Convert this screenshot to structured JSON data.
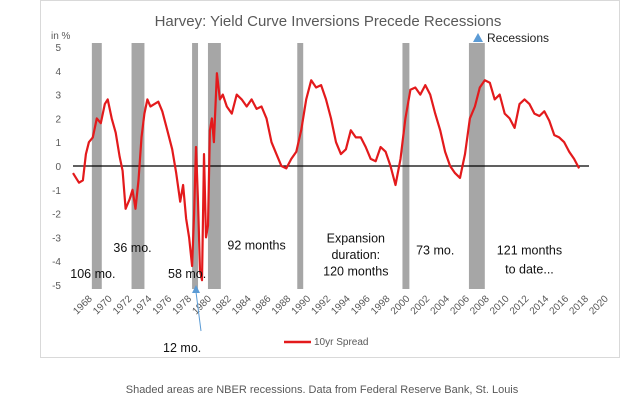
{
  "chart_data": {
    "type": "line",
    "title": "Harvey: Yield Curve Inversions Precede Recessions",
    "ylabel": "in %",
    "xlabel": "",
    "ylim": [
      -5,
      5
    ],
    "xlim": [
      1968,
      2020
    ],
    "yticks": [
      "5",
      "4",
      "3",
      "2",
      "1",
      "0",
      "-1",
      "-2",
      "-3",
      "-4",
      "-5"
    ],
    "xticks": [
      "1968",
      "1970",
      "1972",
      "1974",
      "1976",
      "1978",
      "1980",
      "1982",
      "1984",
      "1986",
      "1988",
      "1990",
      "1992",
      "1994",
      "1996",
      "1998",
      "2000",
      "2002",
      "2004",
      "2006",
      "2008",
      "2010",
      "2012",
      "2014",
      "2016",
      "2018",
      "2020"
    ],
    "legend": "10yr Spread",
    "series": [
      {
        "name": "10yr Spread",
        "color": "#e31a1c",
        "x": [
          1968.0,
          1968.3,
          1968.6,
          1969.0,
          1969.3,
          1969.6,
          1970.0,
          1970.4,
          1970.8,
          1971.2,
          1971.5,
          1971.9,
          1972.3,
          1972.7,
          1973.0,
          1973.3,
          1973.7,
          1974.0,
          1974.3,
          1974.6,
          1974.9,
          1975.2,
          1975.5,
          1975.8,
          1976.2,
          1976.6,
          1977.0,
          1977.5,
          1978.0,
          1978.4,
          1978.8,
          1979.1,
          1979.4,
          1979.7,
          1980.0,
          1980.2,
          1980.4,
          1980.6,
          1980.8,
          1981.0,
          1981.2,
          1981.4,
          1981.6,
          1981.8,
          1982.0,
          1982.2,
          1982.5,
          1982.8,
          1983.1,
          1983.5,
          1984.0,
          1984.5,
          1985.0,
          1985.5,
          1986.0,
          1986.5,
          1987.0,
          1987.5,
          1988.0,
          1988.5,
          1989.0,
          1989.5,
          1990.0,
          1990.5,
          1991.0,
          1991.5,
          1992.0,
          1992.5,
          1993.0,
          1993.5,
          1994.0,
          1994.5,
          1995.0,
          1995.5,
          1996.0,
          1996.5,
          1997.0,
          1997.5,
          1998.0,
          1998.5,
          1999.0,
          1999.5,
          2000.0,
          2000.5,
          2001.0,
          2001.5,
          2002.0,
          2002.5,
          2003.0,
          2003.5,
          2004.0,
          2004.5,
          2005.0,
          2005.5,
          2006.0,
          2006.5,
          2007.0,
          2007.5,
          2008.0,
          2008.5,
          2009.0,
          2009.5,
          2010.0,
          2010.5,
          2011.0,
          2011.5,
          2012.0,
          2012.5,
          2013.0,
          2013.5,
          2014.0,
          2014.5,
          2015.0,
          2015.5,
          2016.0,
          2016.5,
          2017.0,
          2017.5,
          2018.0,
          2018.5,
          2019.0
        ],
        "values": [
          -0.3,
          -0.5,
          -0.7,
          -0.6,
          0.5,
          1.0,
          1.2,
          2.0,
          1.8,
          2.6,
          2.8,
          2.0,
          1.4,
          0.4,
          -0.2,
          -1.8,
          -1.4,
          -1.0,
          -1.8,
          -0.6,
          1.2,
          2.2,
          2.8,
          2.5,
          2.6,
          2.7,
          2.3,
          1.5,
          0.7,
          -0.3,
          -1.5,
          -0.8,
          -2.2,
          -3.0,
          -4.2,
          -2.0,
          0.8,
          -1.5,
          -4.4,
          -4.8,
          0.5,
          -3.0,
          -2.5,
          1.5,
          2.0,
          1.0,
          3.9,
          2.8,
          3.0,
          2.5,
          2.2,
          3.0,
          2.8,
          2.5,
          2.8,
          2.4,
          2.5,
          2.0,
          1.0,
          0.5,
          0.0,
          -0.1,
          0.3,
          0.6,
          1.5,
          2.8,
          3.6,
          3.3,
          3.4,
          2.8,
          2.0,
          1.0,
          0.5,
          0.7,
          1.5,
          1.2,
          1.2,
          0.8,
          0.3,
          0.2,
          0.8,
          0.6,
          0.0,
          -0.8,
          0.3,
          2.0,
          3.2,
          3.3,
          3.0,
          3.4,
          3.0,
          2.2,
          1.5,
          0.6,
          0.0,
          -0.3,
          -0.5,
          0.5,
          2.0,
          2.5,
          3.3,
          3.6,
          3.5,
          2.8,
          3.0,
          2.2,
          2.0,
          1.6,
          2.6,
          2.8,
          2.6,
          2.2,
          2.1,
          2.3,
          1.9,
          1.3,
          1.2,
          1.0,
          0.6,
          0.3,
          -0.1
        ]
      }
    ],
    "recessions": [
      [
        1969.9,
        1970.9
      ],
      [
        1973.9,
        1975.2
      ],
      [
        1980.0,
        1980.6
      ],
      [
        1981.6,
        1982.9
      ],
      [
        1990.6,
        1991.2
      ],
      [
        2001.2,
        2001.9
      ],
      [
        2007.9,
        2009.5
      ]
    ],
    "recessions_legend": "Recessions",
    "annotations": [
      {
        "text": "106 mo.",
        "x": 1970.0,
        "y": -4.5
      },
      {
        "text": "36 mo.",
        "x": 1974.0,
        "y": -3.4
      },
      {
        "text": "58 mo.",
        "x": 1979.5,
        "y": -4.5
      },
      {
        "text": "92 months",
        "x": 1986.5,
        "y": -3.3
      },
      {
        "text": "Expansion",
        "x": 1996.5,
        "y": -3.0
      },
      {
        "text": "duration:",
        "x": 1996.5,
        "y": -3.7
      },
      {
        "text": "120 months",
        "x": 1996.5,
        "y": -4.4
      },
      {
        "text": "73 mo.",
        "x": 2004.5,
        "y": -3.5
      },
      {
        "text": "121 months",
        "x": 2014.0,
        "y": -3.5
      },
      {
        "text": "to date...",
        "x": 2014.0,
        "y": -4.3
      },
      {
        "text": "12 mo.",
        "x": 1979.0,
        "y": -7.6
      }
    ]
  },
  "caption": "Shaded areas are NBER recessions. Data from Federal Reserve Bank, St. Louis"
}
